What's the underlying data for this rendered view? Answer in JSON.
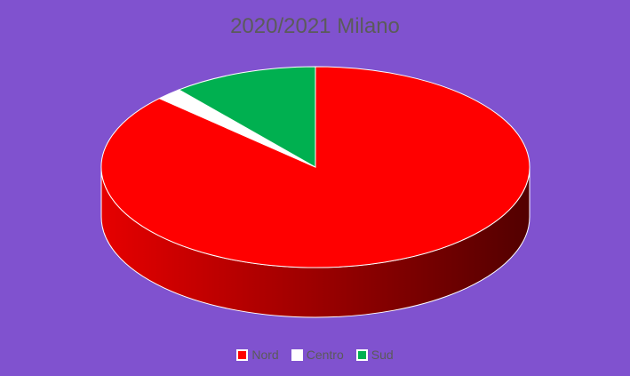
{
  "chart_data": {
    "type": "pie",
    "title": "2020/2021 Milano",
    "categories": [
      "Nord",
      "Centro",
      "Sud"
    ],
    "values": [
      87,
      2,
      11
    ],
    "colors": [
      "#ff0000",
      "#ffffff",
      "#00b050"
    ],
    "style": "3d",
    "legend": "bottom"
  }
}
